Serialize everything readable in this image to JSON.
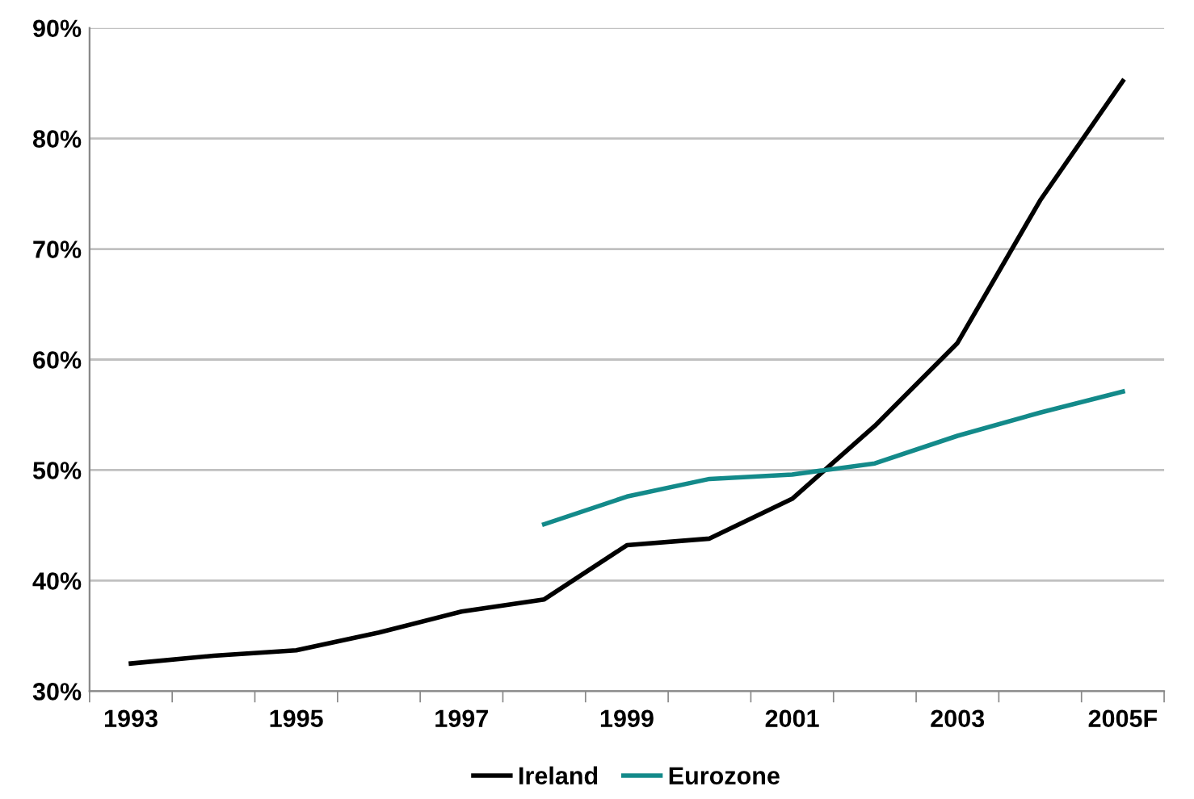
{
  "chart_data": {
    "type": "line",
    "categories": [
      "1993",
      null,
      "1995",
      null,
      "1997",
      null,
      "1999",
      null,
      "2001",
      null,
      "2003",
      null,
      "2005F"
    ],
    "series": [
      {
        "name": "Ireland",
        "color": "#000000",
        "values": [
          32.5,
          33.2,
          33.7,
          35.3,
          37.2,
          38.3,
          43.2,
          43.8,
          47.4,
          54.0,
          61.5,
          74.4,
          85.2
        ]
      },
      {
        "name": "Eurozone",
        "color": "#138a8a",
        "values": [
          null,
          null,
          null,
          null,
          null,
          45.1,
          47.6,
          49.2,
          49.6,
          50.6,
          53.1,
          55.2,
          57.1
        ]
      }
    ],
    "ylim": [
      30,
      90
    ],
    "yticks": [
      {
        "value": 30,
        "label": "30%"
      },
      {
        "value": 40,
        "label": "40%"
      },
      {
        "value": 50,
        "label": "50%"
      },
      {
        "value": 60,
        "label": "60%"
      },
      {
        "value": 70,
        "label": "70%"
      },
      {
        "value": 80,
        "label": "80%"
      },
      {
        "value": 90,
        "label": "90%"
      }
    ],
    "grid": "y",
    "legend": "bottom",
    "marker": "none",
    "line_style": "solid"
  }
}
